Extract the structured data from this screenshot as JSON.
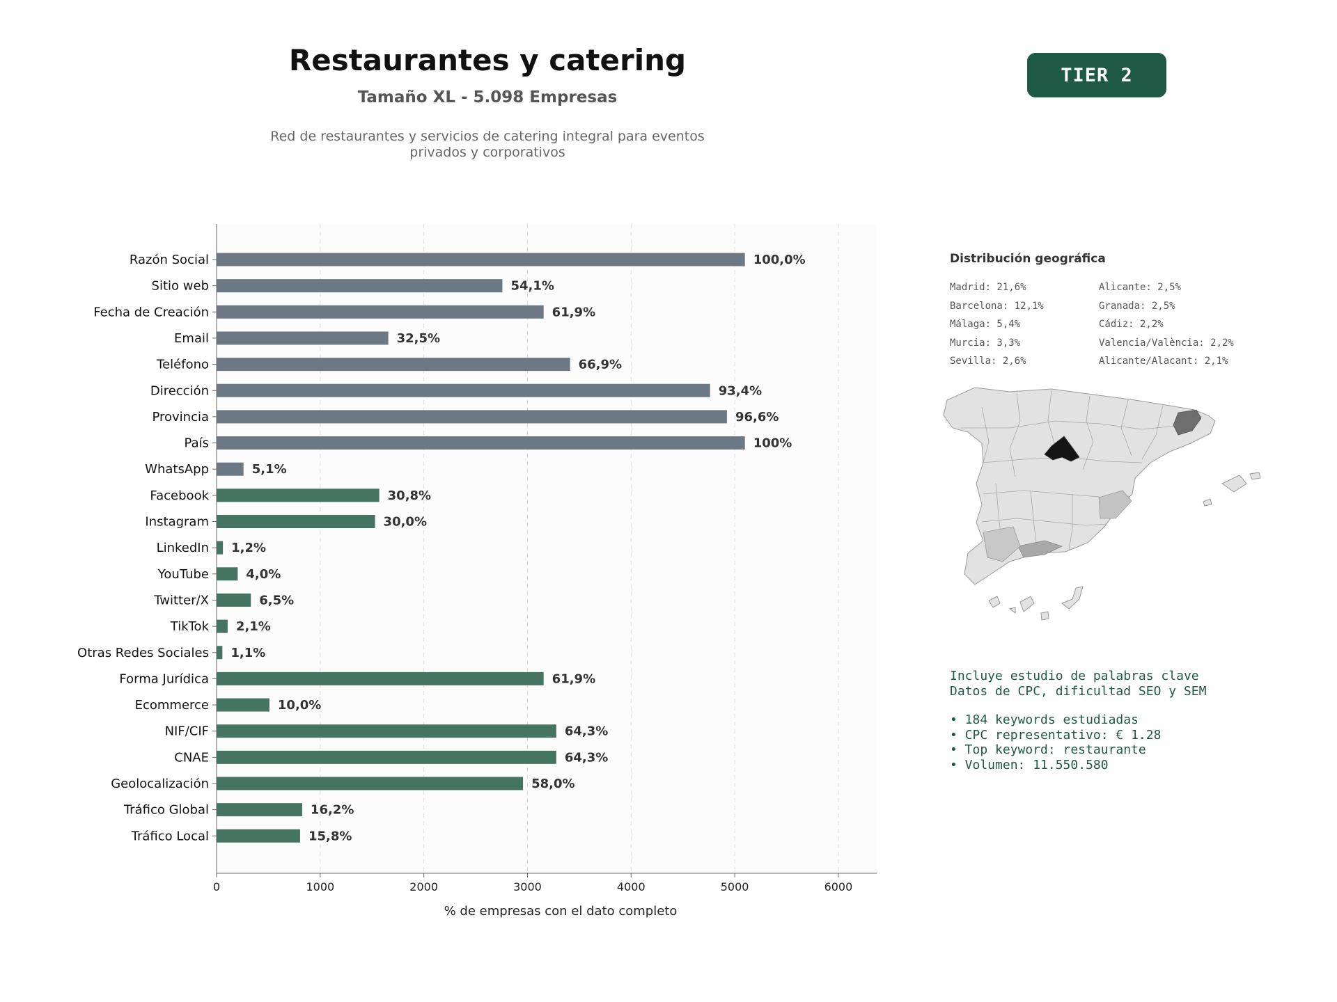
{
  "header": {
    "title": "Restaurantes y catering",
    "subtitle": "Tamaño XL - 5.098 Empresas",
    "description_line1": "Red de restaurantes y servicios de catering integral para eventos",
    "description_line2": "privados y corporativos",
    "tier": "TIER 2"
  },
  "colors": {
    "gray_bar": "#6c7883",
    "green_bar": "#457562",
    "accent": "#1e5945"
  },
  "chart_data": {
    "type": "bar",
    "orientation": "horizontal",
    "xlabel": "% de empresas con el dato completo",
    "xlim": [
      0,
      6370
    ],
    "xticks": [
      0,
      1000,
      2000,
      3000,
      4000,
      5000,
      6000
    ],
    "grid": "vertical-dashed",
    "categories": [
      "Razón Social",
      "Sitio web",
      "Fecha de Creación",
      "Email",
      "Teléfono",
      "Dirección",
      "Provincia",
      "País",
      "WhatsApp",
      "Facebook",
      "Instagram",
      "LinkedIn",
      "YouTube",
      "Twitter/X",
      "TikTok",
      "Otras Redes Sociales",
      "Forma Jurídica",
      "Ecommerce",
      "NIF/CIF",
      "CNAE",
      "Geolocalización",
      "Tráfico Global",
      "Tráfico Local"
    ],
    "values": [
      5098,
      2758,
      3156,
      1657,
      3411,
      4762,
      4925,
      5098,
      260,
      1570,
      1529,
      61,
      204,
      331,
      107,
      56,
      3156,
      510,
      3278,
      3278,
      2957,
      826,
      806
    ],
    "labels": [
      "100,0%",
      "54,1%",
      "61,9%",
      "32,5%",
      "66,9%",
      "93,4%",
      "96,6%",
      "100%",
      "5,1%",
      "30,8%",
      "30,0%",
      "1,2%",
      "4,0%",
      "6,5%",
      "2,1%",
      "1,1%",
      "61,9%",
      "10,0%",
      "64,3%",
      "64,3%",
      "58,0%",
      "16,2%",
      "15,8%"
    ],
    "bar_colors": [
      "gray",
      "gray",
      "gray",
      "gray",
      "gray",
      "gray",
      "gray",
      "gray",
      "gray",
      "green",
      "green",
      "green",
      "green",
      "green",
      "green",
      "green",
      "green",
      "green",
      "green",
      "green",
      "green",
      "green",
      "green"
    ]
  },
  "geo": {
    "title": "Distribución geográfica",
    "col1": [
      "Madrid: 21,6%",
      "Barcelona: 12,1%",
      "Málaga: 5,4%",
      "Murcia: 3,3%",
      "Sevilla: 2,6%"
    ],
    "col2": [
      "Alicante: 2,5%",
      "Granada: 2,5%",
      "Cádiz: 2,2%",
      "Valencia/València: 2,2%",
      "Alicante/Alacant: 2,1%"
    ]
  },
  "seo": {
    "line1": "Incluye estudio de palabras clave",
    "line2": "Datos de CPC, dificultad SEO y SEM",
    "bullets": [
      "• 184 keywords estudiadas",
      "• CPC representativo: € 1.28",
      "• Top keyword: restaurante",
      "• Volumen: 11.550.580"
    ]
  }
}
